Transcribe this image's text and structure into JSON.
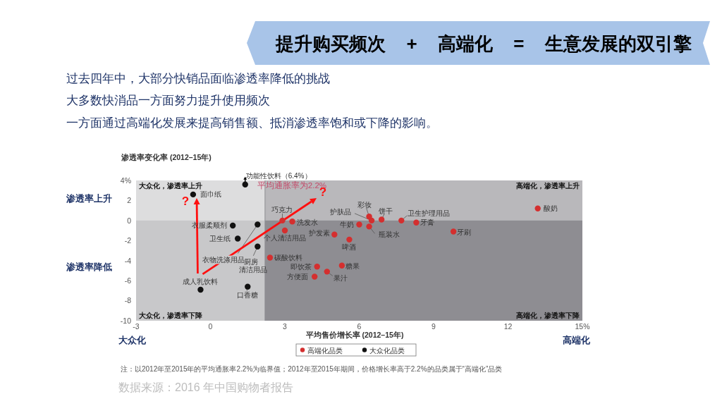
{
  "chart_data": {
    "type": "scatter",
    "title": "提升购买频次 + 高端化 = 生意发展的双引擎",
    "xlabel": "平均售价增长率 (2012–15年)",
    "ylabel": "渗透率变化率 (2012–15年)",
    "xlim": [
      -3,
      15
    ],
    "ylim": [
      -10,
      4
    ],
    "xticks": [
      -3,
      0,
      3,
      6,
      9,
      12,
      {
        "value": 15,
        "label": "15%"
      }
    ],
    "yticks": [
      {
        "value": 4,
        "label": "4%"
      },
      2,
      0,
      -2,
      -4,
      -6,
      -8,
      -10
    ],
    "series": [
      {
        "name": "高端化品类",
        "color": "#d42f2f",
        "x": [
          2.9,
          3.3,
          3.0,
          2.4,
          4.3,
          4.2,
          6.4,
          6.5,
          6.0,
          6.4,
          6.9,
          7.7,
          8.3,
          9.8,
          13.2,
          5.0,
          5.6,
          5.3,
          4.7
        ],
        "values": [
          0.0,
          -0.1,
          -1.0,
          -3.7,
          -4.6,
          -5.6,
          0.4,
          0.0,
          -0.4,
          -0.6,
          0.1,
          0.0,
          -0.2,
          -1.1,
          1.2,
          -1.4,
          -1.9,
          -4.5,
          -5.1
        ]
      },
      {
        "name": "大众化品类",
        "color": "#111111",
        "x": [
          1.4,
          -0.7,
          0.9,
          1.9,
          1.1,
          1.9,
          -0.4,
          1.5
        ],
        "values": [
          3.6,
          2.6,
          -0.5,
          -0.4,
          -1.8,
          -2.6,
          -6.9,
          -6.6
        ]
      }
    ],
    "bands": [
      {
        "axis": "x",
        "from": -3,
        "to": 2.2,
        "color": "#c8c8ca"
      },
      {
        "axis": "x",
        "from": 2.2,
        "to": 15,
        "color": "#8e8d92"
      },
      {
        "axis": "y",
        "from": 0,
        "to": 4,
        "color": "#ffffff"
      }
    ],
    "ref_lines": [
      {
        "axis": "x",
        "value": 2.2,
        "label": "平均通胀率为2.2%",
        "color": "#8e8d92"
      }
    ],
    "legend": "bottom",
    "marker": "circle",
    "annotations": [
      "过去四年中，大部分快销品面临渗透率降低的挑战",
      "大多数快消品一方面努力提升使用频次",
      "一方面通过高端化发展来提高销售额、抵消渗透率饱和或下降的影响。",
      "渗透率上升",
      "渗透率降低",
      "大众化",
      "高端化",
      "大众化，渗透率上升",
      "高端化，渗透率上升",
      "大众化，渗透率下降",
      "高端化，渗透率下降",
      "注：以2012年至2015年的平均通胀率2.2%为临界值；2012年至2015年期间，价格增长率高于2.2%的品类属于“高端化”品类",
      "数据来源：2016 年中国购物者报告",
      {
        "text": "巧克力",
        "x": 2.9,
        "y": 0.0
      },
      {
        "text": "洗发水",
        "x": 3.3,
        "y": -0.1
      },
      {
        "text": "个人清洁用品",
        "x": 3.0,
        "y": -1.0
      },
      {
        "text": "碳酸饮料",
        "x": 2.4,
        "y": -3.7
      },
      {
        "text": "即饮茶",
        "x": 4.3,
        "y": -4.6
      },
      {
        "text": "方便面",
        "x": 4.2,
        "y": -5.6
      },
      {
        "text": "彩妆",
        "x": 6.4,
        "y": 0.4
      },
      {
        "text": "护肤品",
        "x": 6.5,
        "y": 0.0
      },
      {
        "text": "牛奶",
        "x": 6.0,
        "y": -0.4
      },
      {
        "text": "瓶装水",
        "x": 6.4,
        "y": -0.6
      },
      {
        "text": "饼干",
        "x": 6.9,
        "y": 0.1
      },
      {
        "text": "卫生护理用品",
        "x": 7.7,
        "y": 0.0
      },
      {
        "text": "牙膏",
        "x": 8.3,
        "y": -0.2
      },
      {
        "text": "牙刷",
        "x": 9.8,
        "y": -1.1
      },
      {
        "text": "酸奶",
        "x": 13.2,
        "y": 1.2
      },
      {
        "text": "护发素",
        "x": 5.0,
        "y": -1.4
      },
      {
        "text": "啤酒",
        "x": 5.6,
        "y": -1.9
      },
      {
        "text": "糖果",
        "x": 5.3,
        "y": -4.5
      },
      {
        "text": "果汁",
        "x": 4.7,
        "y": -5.1
      },
      {
        "text": "功能性饮料（6.4%）",
        "x": 1.4,
        "y": 3.6
      },
      {
        "text": "面巾纸",
        "x": -0.7,
        "y": 2.6
      },
      {
        "text": "衣服柔顺剂",
        "x": 0.9,
        "y": -0.5
      },
      {
        "text": "衣物洗涤用品",
        "x": 1.9,
        "y": -0.4
      },
      {
        "text": "卫生纸",
        "x": 1.1,
        "y": -1.8
      },
      {
        "text": "厨房清洁用品",
        "x": 1.9,
        "y": -2.6
      },
      {
        "text": "成人乳饮料",
        "x": -0.4,
        "y": -6.9
      },
      {
        "text": "口香糖",
        "x": 1.5,
        "y": -6.6
      },
      "?",
      "?"
    ]
  }
}
